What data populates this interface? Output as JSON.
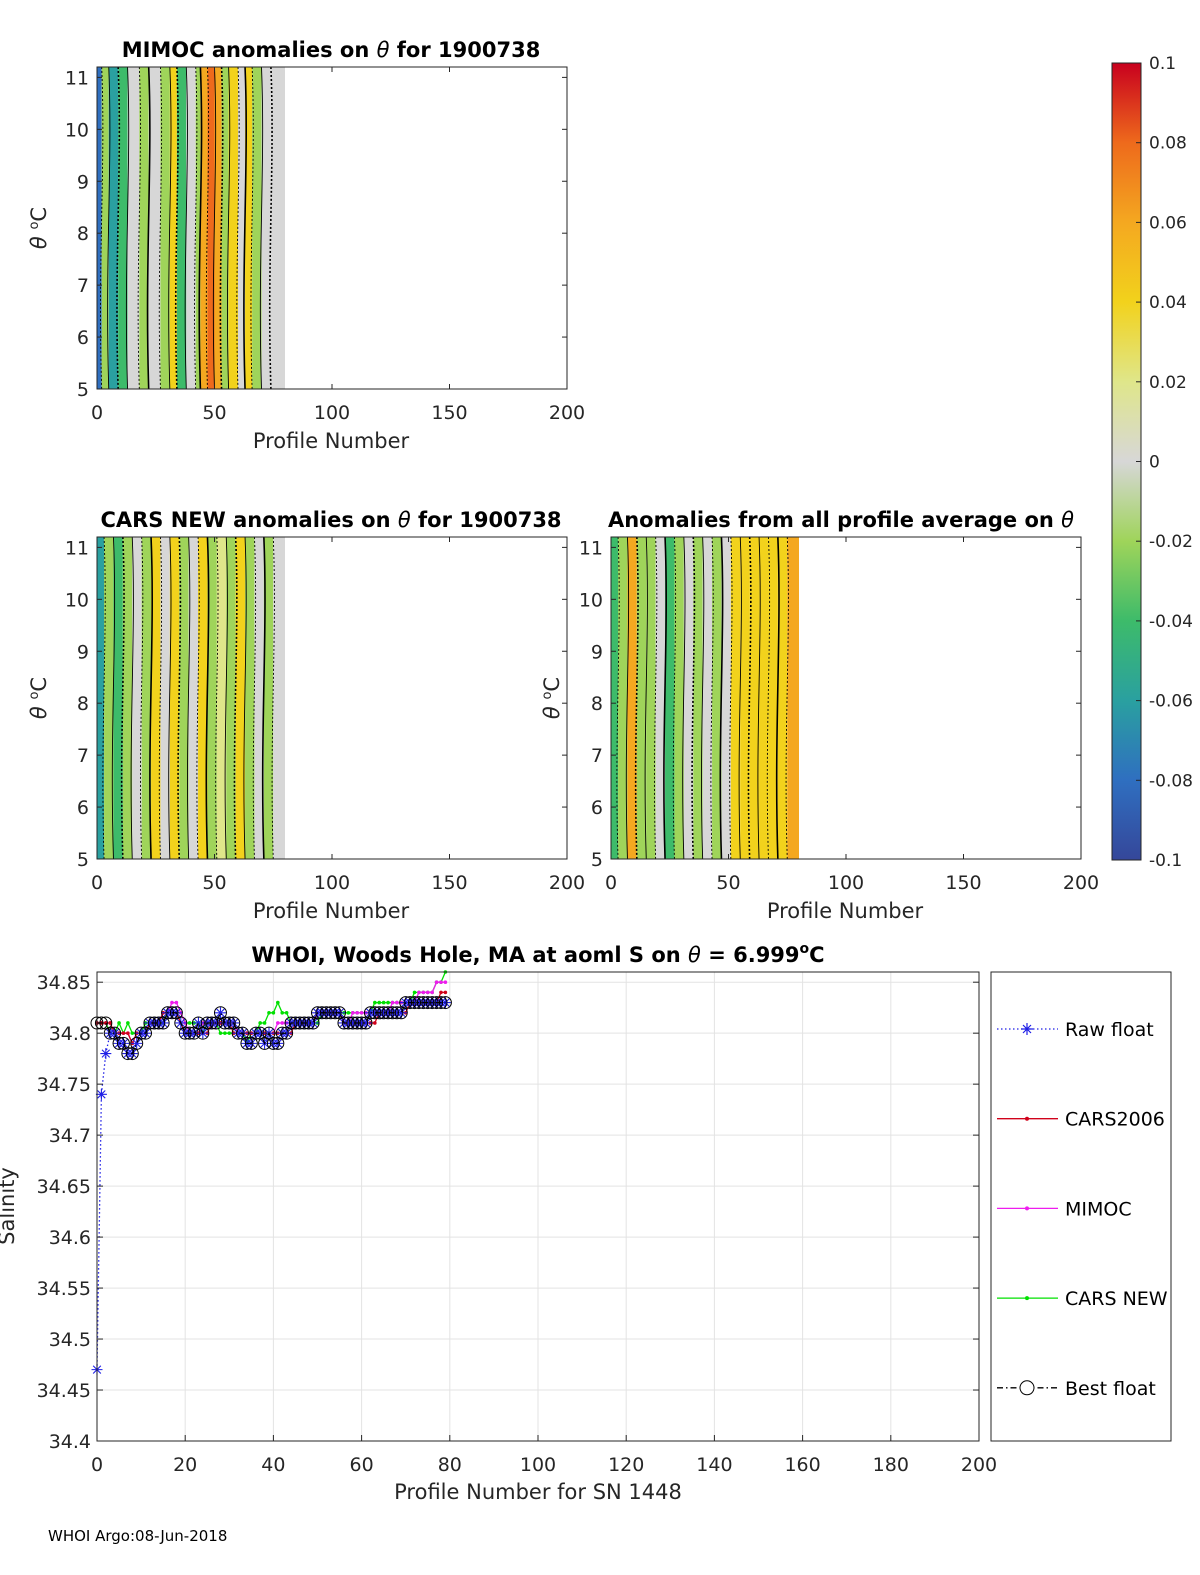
{
  "footer": "WHOI Argo:08-Jun-2018",
  "colorbar": {
    "ticks": [
      "0.1",
      "0.08",
      "0.06",
      "0.04",
      "0.02",
      "0",
      "-0.02",
      "-0.04",
      "-0.06",
      "-0.08",
      "-0.1"
    ],
    "range": [
      -0.1,
      0.1
    ],
    "colors": [
      "#35479a",
      "#2f6fc0",
      "#2aa0a0",
      "#3dbb6a",
      "#9fd45a",
      "#d7d7d7",
      "#dfe68a",
      "#f2d21c",
      "#f4a820",
      "#ee6a1c",
      "#c8001e"
    ]
  },
  "chart_data": [
    {
      "type": "heatmap",
      "title_prefix": "MIMOC anomalies on ",
      "theta_symbol": "θ",
      "title_suffix": "  for 1900738",
      "xlabel": "Profile Number",
      "ylabel_theta": "θ",
      "ylabel_unit": "C",
      "ylabel_deg": "o",
      "xlim": [
        0,
        200
      ],
      "ylim": [
        5,
        11.2
      ],
      "xticks": [
        "0",
        "50",
        "100",
        "150",
        "200"
      ],
      "yticks": [
        "5",
        "6",
        "7",
        "8",
        "9",
        "10",
        "11"
      ],
      "field_profiles": [
        0,
        80
      ],
      "field_bands": [
        {
          "x0": 0,
          "x1": 2,
          "v": -0.08
        },
        {
          "x0": 2,
          "x1": 5,
          "v": -0.03
        },
        {
          "x0": 5,
          "x1": 9,
          "v": -0.06
        },
        {
          "x0": 9,
          "x1": 13,
          "v": -0.04
        },
        {
          "x0": 13,
          "x1": 18,
          "v": 0.0
        },
        {
          "x0": 18,
          "x1": 22,
          "v": -0.03
        },
        {
          "x0": 22,
          "x1": 27,
          "v": 0.01
        },
        {
          "x0": 27,
          "x1": 31,
          "v": -0.02
        },
        {
          "x0": 31,
          "x1": 34,
          "v": 0.03
        },
        {
          "x0": 34,
          "x1": 38,
          "v": -0.04
        },
        {
          "x0": 38,
          "x1": 42,
          "v": 0.0
        },
        {
          "x0": 42,
          "x1": 44,
          "v": -0.02
        },
        {
          "x0": 44,
          "x1": 47,
          "v": 0.06
        },
        {
          "x0": 47,
          "x1": 50,
          "v": 0.08
        },
        {
          "x0": 50,
          "x1": 53,
          "v": 0.05
        },
        {
          "x0": 53,
          "x1": 56,
          "v": -0.02
        },
        {
          "x0": 56,
          "x1": 60,
          "v": 0.04
        },
        {
          "x0": 60,
          "x1": 63,
          "v": -0.01
        },
        {
          "x0": 63,
          "x1": 66,
          "v": 0.03
        },
        {
          "x0": 66,
          "x1": 70,
          "v": -0.02
        },
        {
          "x0": 70,
          "x1": 74,
          "v": 0.01
        },
        {
          "x0": 74,
          "x1": 80,
          "v": 0.0
        }
      ]
    },
    {
      "type": "heatmap",
      "title_prefix": "CARS NEW anomalies on ",
      "theta_symbol": "θ",
      "title_suffix": " for 1900738",
      "xlabel": "Profile Number",
      "ylabel_theta": "θ",
      "ylabel_unit": "C",
      "ylabel_deg": "o",
      "xlim": [
        0,
        200
      ],
      "ylim": [
        5,
        11.2
      ],
      "xticks": [
        "0",
        "50",
        "100",
        "150",
        "200"
      ],
      "yticks": [
        "5",
        "6",
        "7",
        "8",
        "9",
        "10",
        "11"
      ],
      "field_profiles": [
        0,
        80
      ],
      "field_bands": [
        {
          "x0": 0,
          "x1": 3,
          "v": -0.06
        },
        {
          "x0": 3,
          "x1": 7,
          "v": -0.02
        },
        {
          "x0": 7,
          "x1": 11,
          "v": -0.05
        },
        {
          "x0": 11,
          "x1": 15,
          "v": -0.03
        },
        {
          "x0": 15,
          "x1": 19,
          "v": 0.0
        },
        {
          "x0": 19,
          "x1": 23,
          "v": -0.03
        },
        {
          "x0": 23,
          "x1": 27,
          "v": 0.03
        },
        {
          "x0": 27,
          "x1": 31,
          "v": 0.0
        },
        {
          "x0": 31,
          "x1": 35,
          "v": 0.04
        },
        {
          "x0": 35,
          "x1": 39,
          "v": -0.02
        },
        {
          "x0": 39,
          "x1": 43,
          "v": 0.0
        },
        {
          "x0": 43,
          "x1": 47,
          "v": 0.03
        },
        {
          "x0": 47,
          "x1": 51,
          "v": -0.02
        },
        {
          "x0": 51,
          "x1": 55,
          "v": 0.02
        },
        {
          "x0": 55,
          "x1": 59,
          "v": -0.03
        },
        {
          "x0": 59,
          "x1": 63,
          "v": 0.04
        },
        {
          "x0": 63,
          "x1": 67,
          "v": -0.02
        },
        {
          "x0": 67,
          "x1": 71,
          "v": 0.0
        },
        {
          "x0": 71,
          "x1": 75,
          "v": -0.02
        },
        {
          "x0": 75,
          "x1": 80,
          "v": -0.01
        }
      ]
    },
    {
      "type": "heatmap",
      "title_prefix": "Anomalies from all profile average on ",
      "theta_symbol": "θ",
      "title_suffix": "",
      "xlabel": "Profile Number",
      "ylabel_theta": "θ",
      "ylabel_unit": "C",
      "ylabel_deg": "o",
      "xlim": [
        0,
        200
      ],
      "ylim": [
        5,
        11.2
      ],
      "xticks": [
        "0",
        "50",
        "100",
        "150",
        "200"
      ],
      "yticks": [
        "5",
        "6",
        "7",
        "8",
        "9",
        "10",
        "11"
      ],
      "field_profiles": [
        0,
        80
      ],
      "field_bands": [
        {
          "x0": 0,
          "x1": 3,
          "v": -0.04
        },
        {
          "x0": 3,
          "x1": 7,
          "v": -0.02
        },
        {
          "x0": 7,
          "x1": 11,
          "v": 0.05
        },
        {
          "x0": 11,
          "x1": 15,
          "v": -0.03
        },
        {
          "x0": 15,
          "x1": 19,
          "v": -0.02
        },
        {
          "x0": 19,
          "x1": 23,
          "v": 0.0
        },
        {
          "x0": 23,
          "x1": 27,
          "v": -0.05
        },
        {
          "x0": 27,
          "x1": 31,
          "v": -0.03
        },
        {
          "x0": 31,
          "x1": 35,
          "v": 0.0
        },
        {
          "x0": 35,
          "x1": 39,
          "v": -0.02
        },
        {
          "x0": 39,
          "x1": 43,
          "v": 0.0
        },
        {
          "x0": 43,
          "x1": 47,
          "v": -0.02
        },
        {
          "x0": 47,
          "x1": 51,
          "v": 0.0
        },
        {
          "x0": 51,
          "x1": 55,
          "v": 0.03
        },
        {
          "x0": 55,
          "x1": 59,
          "v": 0.04
        },
        {
          "x0": 59,
          "x1": 63,
          "v": 0.03
        },
        {
          "x0": 63,
          "x1": 67,
          "v": 0.04
        },
        {
          "x0": 67,
          "x1": 71,
          "v": 0.03
        },
        {
          "x0": 71,
          "x1": 75,
          "v": 0.04
        },
        {
          "x0": 75,
          "x1": 80,
          "v": 0.06
        }
      ]
    },
    {
      "type": "line",
      "title_prefix": "WHOI, Woods Hole, MA at aoml S on ",
      "theta_symbol": "θ",
      "title_mid": " = 6.999",
      "title_deg": "o",
      "title_unit": "C",
      "xlabel": "Profile Number for SN 1448",
      "ylabel": "Salinity",
      "xlim": [
        0,
        200
      ],
      "ylim": [
        34.4,
        34.86
      ],
      "xticks": [
        "0",
        "20",
        "40",
        "60",
        "80",
        "100",
        "120",
        "140",
        "160",
        "180",
        "200"
      ],
      "yticks": [
        "34.4",
        "34.45",
        "34.5",
        "34.55",
        "34.6",
        "34.65",
        "34.7",
        "34.75",
        "34.8",
        "34.85"
      ],
      "grid": true,
      "legend_position": "right",
      "x": [
        0,
        1,
        2,
        3,
        4,
        5,
        6,
        7,
        8,
        9,
        10,
        11,
        12,
        13,
        14,
        15,
        16,
        17,
        18,
        19,
        20,
        21,
        22,
        23,
        24,
        25,
        26,
        27,
        28,
        29,
        30,
        31,
        32,
        33,
        34,
        35,
        36,
        37,
        38,
        39,
        40,
        41,
        42,
        43,
        44,
        45,
        46,
        47,
        48,
        49,
        50,
        51,
        52,
        53,
        54,
        55,
        56,
        57,
        58,
        59,
        60,
        61,
        62,
        63,
        64,
        65,
        66,
        67,
        68,
        69,
        70,
        71,
        72,
        73,
        74,
        75,
        76,
        77,
        78,
        79
      ],
      "series": [
        {
          "name": "Raw float",
          "color": "#1f1fe6",
          "style": "dotted-star",
          "values": [
            34.47,
            34.74,
            34.78,
            34.8,
            34.8,
            34.79,
            34.79,
            34.78,
            34.78,
            34.79,
            34.8,
            34.8,
            34.81,
            34.81,
            34.81,
            34.81,
            34.82,
            34.82,
            34.82,
            34.81,
            34.8,
            34.8,
            34.8,
            34.81,
            34.8,
            34.81,
            34.81,
            34.81,
            34.82,
            34.81,
            34.81,
            34.81,
            34.8,
            34.8,
            34.79,
            34.79,
            34.8,
            34.8,
            34.79,
            34.8,
            34.79,
            34.79,
            34.8,
            34.8,
            34.81,
            34.81,
            34.81,
            34.81,
            34.81,
            34.81,
            34.82,
            34.82,
            34.82,
            34.82,
            34.82,
            34.82,
            34.81,
            34.81,
            34.81,
            34.81,
            34.81,
            34.81,
            34.82,
            34.82,
            34.82,
            34.82,
            34.82,
            34.82,
            34.82,
            34.82,
            34.83,
            34.83,
            34.83,
            34.83,
            34.83,
            34.83,
            34.83,
            34.83,
            34.83,
            34.83
          ]
        },
        {
          "name": "CARS2006",
          "color": "#d0021b",
          "style": "solid-dot",
          "values": [
            34.81,
            34.81,
            34.81,
            34.81,
            34.8,
            34.8,
            34.8,
            34.8,
            34.79,
            34.8,
            34.8,
            34.8,
            34.81,
            34.81,
            34.81,
            34.82,
            34.82,
            34.82,
            34.82,
            34.81,
            34.8,
            34.8,
            34.8,
            34.8,
            34.8,
            34.8,
            34.81,
            34.81,
            34.81,
            34.81,
            34.81,
            34.8,
            34.8,
            34.8,
            34.8,
            34.8,
            34.8,
            34.8,
            34.8,
            34.8,
            34.8,
            34.8,
            34.8,
            34.8,
            34.8,
            34.81,
            34.81,
            34.81,
            34.81,
            34.81,
            34.82,
            34.82,
            34.82,
            34.82,
            34.82,
            34.82,
            34.81,
            34.81,
            34.81,
            34.81,
            34.81,
            34.81,
            34.81,
            34.81,
            34.82,
            34.82,
            34.82,
            34.82,
            34.82,
            34.82,
            34.82,
            34.83,
            34.83,
            34.83,
            34.83,
            34.83,
            34.83,
            34.83,
            34.84,
            34.84
          ]
        },
        {
          "name": "MIMOC",
          "color": "#ee1cee",
          "style": "solid-dot",
          "values": [
            34.81,
            34.81,
            34.81,
            34.81,
            34.8,
            34.8,
            34.8,
            34.8,
            34.79,
            34.8,
            34.8,
            34.8,
            34.81,
            34.81,
            34.81,
            34.82,
            34.82,
            34.83,
            34.83,
            34.82,
            34.81,
            34.8,
            34.8,
            34.8,
            34.81,
            34.81,
            34.81,
            34.81,
            34.81,
            34.81,
            34.81,
            34.81,
            34.8,
            34.8,
            34.8,
            34.8,
            34.8,
            34.8,
            34.8,
            34.8,
            34.8,
            34.81,
            34.81,
            34.81,
            34.81,
            34.81,
            34.81,
            34.81,
            34.81,
            34.81,
            34.82,
            34.82,
            34.82,
            34.82,
            34.82,
            34.82,
            34.81,
            34.81,
            34.82,
            34.82,
            34.82,
            34.82,
            34.82,
            34.82,
            34.82,
            34.82,
            34.82,
            34.83,
            34.83,
            34.83,
            34.83,
            34.83,
            34.83,
            34.84,
            34.84,
            34.84,
            34.84,
            34.85,
            34.85,
            34.85
          ]
        },
        {
          "name": "CARS NEW",
          "color": "#00e000",
          "style": "solid-dot",
          "values": [
            34.81,
            34.81,
            34.81,
            34.8,
            34.8,
            34.81,
            34.8,
            34.81,
            34.8,
            34.8,
            34.8,
            34.81,
            34.81,
            34.81,
            34.81,
            34.81,
            34.82,
            34.82,
            34.82,
            34.82,
            34.81,
            34.81,
            34.81,
            34.81,
            34.8,
            34.81,
            34.81,
            34.81,
            34.8,
            34.8,
            34.8,
            34.8,
            34.8,
            34.8,
            34.79,
            34.8,
            34.8,
            34.81,
            34.81,
            34.82,
            34.82,
            34.83,
            34.82,
            34.82,
            34.81,
            34.81,
            34.81,
            34.81,
            34.81,
            34.81,
            34.81,
            34.82,
            34.82,
            34.82,
            34.82,
            34.82,
            34.82,
            34.82,
            34.82,
            34.82,
            34.82,
            34.82,
            34.82,
            34.83,
            34.83,
            34.83,
            34.83,
            34.83,
            34.83,
            34.83,
            34.83,
            34.83,
            34.84,
            34.84,
            34.84,
            34.84,
            34.84,
            34.85,
            34.85,
            34.86
          ]
        },
        {
          "name": "Best float",
          "color": "#000000",
          "style": "dashdot-circle",
          "values": [
            34.81,
            34.81,
            34.81,
            34.8,
            34.8,
            34.79,
            34.79,
            34.78,
            34.78,
            34.79,
            34.8,
            34.8,
            34.81,
            34.81,
            34.81,
            34.81,
            34.82,
            34.82,
            34.82,
            34.81,
            34.8,
            34.8,
            34.8,
            34.81,
            34.8,
            34.81,
            34.81,
            34.81,
            34.82,
            34.81,
            34.81,
            34.81,
            34.8,
            34.8,
            34.79,
            34.79,
            34.8,
            34.8,
            34.79,
            34.8,
            34.79,
            34.79,
            34.8,
            34.8,
            34.81,
            34.81,
            34.81,
            34.81,
            34.81,
            34.81,
            34.82,
            34.82,
            34.82,
            34.82,
            34.82,
            34.82,
            34.81,
            34.81,
            34.81,
            34.81,
            34.81,
            34.81,
            34.82,
            34.82,
            34.82,
            34.82,
            34.82,
            34.82,
            34.82,
            34.82,
            34.83,
            34.83,
            34.83,
            34.83,
            34.83,
            34.83,
            34.83,
            34.83,
            34.83,
            34.83
          ]
        }
      ]
    }
  ]
}
